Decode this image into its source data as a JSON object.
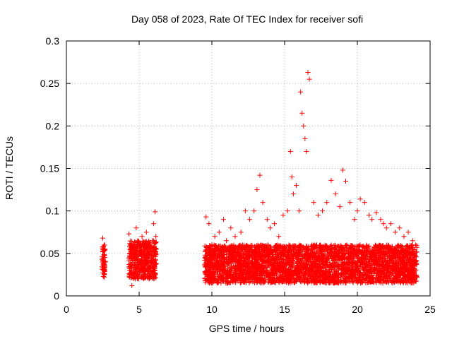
{
  "chart_data": {
    "type": "scatter",
    "title": "Day 058 of 2023, Rate Of TEC Index for receiver sofi",
    "xlabel": "GPS time / hours",
    "ylabel": "ROTI / TECUs",
    "xlim": [
      0,
      25
    ],
    "ylim": [
      0,
      0.3
    ],
    "xticks": [
      "0",
      "5",
      "10",
      "15",
      "20",
      "25"
    ],
    "yticks": [
      "0",
      "0.05",
      "0.1",
      "0.15",
      "0.2",
      "0.25",
      "0.3"
    ],
    "grid": true,
    "marker": "+",
    "color": "#ff0000",
    "series": [
      {
        "name": "ROTI",
        "x": [
          2.5,
          2.52,
          2.55,
          2.58,
          2.6,
          2.62,
          2.65,
          4.3,
          4.4,
          4.5,
          4.6,
          4.7,
          4.8,
          4.9,
          5.0,
          5.1,
          5.2,
          5.3,
          5.4,
          5.5,
          5.6,
          5.7,
          5.8,
          5.9,
          6.0,
          6.1,
          6.15,
          9.6,
          9.8,
          10.0,
          10.2,
          10.5,
          10.8,
          11.0,
          11.3,
          11.6,
          12.0,
          12.3,
          12.6,
          12.9,
          13.1,
          13.3,
          13.5,
          13.8,
          14.0,
          14.3,
          14.6,
          14.9,
          15.2,
          15.4,
          15.5,
          15.6,
          15.8,
          16.0,
          16.1,
          16.2,
          16.3,
          16.4,
          16.5,
          16.6,
          16.7,
          17.0,
          17.3,
          17.6,
          17.9,
          18.2,
          18.5,
          18.8,
          19.0,
          19.2,
          19.5,
          19.8,
          20.0,
          20.2,
          20.5,
          20.8,
          21.0,
          21.3,
          21.6,
          21.8,
          22.0,
          22.3,
          22.6,
          22.9,
          23.2,
          23.5,
          23.8,
          24.0
        ],
        "y": [
          0.068,
          0.055,
          0.045,
          0.038,
          0.03,
          0.025,
          0.035,
          0.073,
          0.06,
          0.012,
          0.05,
          0.045,
          0.08,
          0.065,
          0.04,
          0.055,
          0.07,
          0.035,
          0.05,
          0.075,
          0.045,
          0.06,
          0.04,
          0.065,
          0.085,
          0.099,
          0.07,
          0.093,
          0.085,
          0.06,
          0.07,
          0.075,
          0.09,
          0.065,
          0.08,
          0.07,
          0.075,
          0.1,
          0.09,
          0.1,
          0.125,
          0.142,
          0.11,
          0.09,
          0.08,
          0.085,
          0.07,
          0.095,
          0.1,
          0.17,
          0.14,
          0.12,
          0.13,
          0.1,
          0.24,
          0.215,
          0.2,
          0.185,
          0.17,
          0.263,
          0.255,
          0.11,
          0.095,
          0.1,
          0.11,
          0.136,
          0.12,
          0.105,
          0.148,
          0.135,
          0.11,
          0.09,
          0.1,
          0.114,
          0.11,
          0.095,
          0.09,
          0.098,
          0.09,
          0.085,
          0.08,
          0.085,
          0.075,
          0.08,
          0.07,
          0.075,
          0.065,
          0.06
        ]
      }
    ],
    "density": [
      {
        "x": [
          2.45,
          2.68
        ],
        "y": [
          0.022,
          0.06
        ]
      },
      {
        "x": [
          4.3,
          6.2
        ],
        "y": [
          0.02,
          0.065
        ]
      },
      {
        "x": [
          9.5,
          24.1
        ],
        "y": [
          0.015,
          0.06
        ]
      }
    ]
  }
}
